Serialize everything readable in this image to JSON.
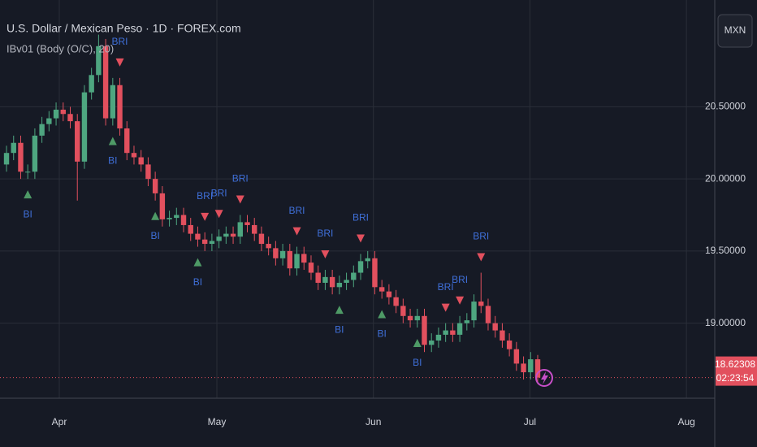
{
  "chart_data": {
    "type": "candlestick",
    "title": "U.S. Dollar / Mexican Peso · 1D · FOREX.com",
    "indicator": "IBv01 (Body (O/C), 20)",
    "currency_button": "MXN",
    "countdown": "02:23:54",
    "open": [
      20.1,
      20.18,
      20.25,
      20.05,
      20.05,
      20.3,
      20.38,
      20.42,
      20.48,
      20.45,
      20.4,
      20.12,
      20.6,
      20.72,
      20.92,
      20.42,
      20.65,
      20.35,
      20.18,
      20.15,
      20.1,
      20.0,
      19.9,
      19.72,
      19.73,
      19.75,
      19.68,
      19.62,
      19.58,
      19.55,
      19.57,
      19.6,
      19.62,
      19.6,
      19.7,
      19.68,
      19.62,
      19.55,
      19.52,
      19.45,
      19.5,
      19.38,
      19.48,
      19.42,
      19.35,
      19.28,
      19.32,
      19.25,
      19.28,
      19.3,
      19.35,
      19.43,
      19.45,
      19.25,
      19.22,
      19.18,
      19.12,
      19.05,
      19.02,
      19.05,
      18.85,
      18.88,
      18.92,
      18.95,
      18.92,
      19.0,
      19.02,
      19.15,
      19.12,
      19.0,
      18.95,
      18.88,
      18.82,
      18.72,
      18.66,
      18.75
    ],
    "high": [
      20.23,
      20.3,
      20.3,
      20.1,
      20.35,
      20.43,
      20.47,
      20.53,
      20.53,
      20.5,
      20.45,
      20.65,
      20.77,
      21.0,
      20.97,
      20.7,
      20.7,
      20.4,
      20.23,
      20.2,
      20.15,
      20.05,
      19.95,
      19.78,
      19.8,
      19.8,
      19.73,
      19.67,
      19.63,
      19.62,
      19.65,
      19.67,
      19.67,
      19.75,
      19.75,
      19.73,
      19.67,
      19.6,
      19.57,
      19.55,
      19.55,
      19.53,
      19.53,
      19.47,
      19.4,
      19.37,
      19.37,
      19.33,
      19.35,
      19.4,
      19.48,
      19.5,
      19.5,
      19.3,
      19.27,
      19.23,
      19.17,
      19.1,
      19.1,
      19.1,
      18.93,
      18.97,
      19.0,
      19.0,
      19.05,
      19.07,
      19.2,
      19.35,
      19.17,
      19.05,
      19.0,
      18.93,
      18.87,
      18.77,
      18.8,
      18.78
    ],
    "low": [
      20.05,
      20.13,
      20.0,
      20.0,
      20.0,
      20.25,
      20.33,
      20.37,
      20.4,
      20.35,
      19.85,
      20.07,
      20.55,
      20.67,
      20.37,
      20.37,
      20.3,
      20.13,
      20.1,
      20.05,
      19.95,
      19.85,
      19.67,
      19.67,
      19.68,
      19.63,
      19.57,
      19.53,
      19.5,
      19.5,
      19.52,
      19.55,
      19.55,
      19.55,
      19.63,
      19.57,
      19.5,
      19.47,
      19.4,
      19.4,
      19.33,
      19.33,
      19.37,
      19.3,
      19.23,
      19.23,
      19.2,
      19.2,
      19.23,
      19.25,
      19.3,
      19.38,
      19.2,
      19.17,
      19.13,
      19.07,
      19.0,
      18.97,
      18.97,
      18.8,
      18.8,
      18.83,
      18.87,
      18.87,
      18.87,
      18.95,
      18.97,
      19.07,
      18.95,
      18.9,
      18.83,
      18.77,
      18.67,
      18.61,
      18.61,
      18.58
    ],
    "close": [
      20.18,
      20.25,
      20.05,
      20.05,
      20.3,
      20.38,
      20.42,
      20.48,
      20.45,
      20.4,
      20.12,
      20.6,
      20.72,
      20.92,
      20.42,
      20.65,
      20.35,
      20.18,
      20.15,
      20.1,
      20.0,
      19.9,
      19.72,
      19.73,
      19.75,
      19.68,
      19.62,
      19.58,
      19.55,
      19.57,
      19.6,
      19.62,
      19.6,
      19.7,
      19.68,
      19.62,
      19.55,
      19.52,
      19.45,
      19.5,
      19.38,
      19.48,
      19.42,
      19.35,
      19.28,
      19.32,
      19.25,
      19.28,
      19.3,
      19.35,
      19.43,
      19.45,
      19.25,
      19.22,
      19.18,
      19.12,
      19.05,
      19.02,
      19.05,
      18.85,
      18.88,
      18.92,
      18.95,
      18.92,
      19.0,
      19.02,
      19.15,
      19.12,
      19.0,
      18.95,
      18.88,
      18.82,
      18.72,
      18.66,
      18.75,
      18.62308
    ],
    "up_color": "#4ea680",
    "down_color": "#e2505e",
    "bi_color": "#4e9a66",
    "bri_color": "#e2505e",
    "label_color": "#3f6fd8",
    "xlim": [
      -0.92,
      100
    ],
    "xticks": [
      {
        "value": 7.45,
        "label": "Apr"
      },
      {
        "value": 29.7,
        "label": "May"
      },
      {
        "value": 51.8,
        "label": "Jun"
      },
      {
        "value": 73.9,
        "label": "Jul"
      },
      {
        "value": 96.0,
        "label": "Aug"
      }
    ],
    "ylim": [
      18.48,
      21.24
    ],
    "yticks": [
      {
        "value": 19,
        "label": "19.00000"
      },
      {
        "value": 19.5,
        "label": "19.50000"
      },
      {
        "value": 20,
        "label": "20.00000"
      },
      {
        "value": 20.5,
        "label": "20.50000"
      }
    ],
    "grid": true,
    "signals": [
      {
        "label": "BI",
        "bar": 3
      },
      {
        "label": "BI",
        "bar": 15
      },
      {
        "label": "BI",
        "bar": 21
      },
      {
        "label": "BI",
        "bar": 27
      },
      {
        "label": "BI",
        "bar": 47
      },
      {
        "label": "BI",
        "bar": 53
      },
      {
        "label": "BI",
        "bar": 58
      },
      {
        "label": "BRI",
        "bar": 16
      },
      {
        "label": "BRI",
        "bar": 28
      },
      {
        "label": "BRI",
        "bar": 30
      },
      {
        "label": "BRI",
        "bar": 33
      },
      {
        "label": "BRI",
        "bar": 41
      },
      {
        "label": "BRI",
        "bar": 45
      },
      {
        "label": "BRI",
        "bar": 50
      },
      {
        "label": "BRI",
        "bar": 62
      },
      {
        "label": "BRI",
        "bar": 64
      },
      {
        "label": "BRI",
        "bar": 67
      }
    ]
  }
}
